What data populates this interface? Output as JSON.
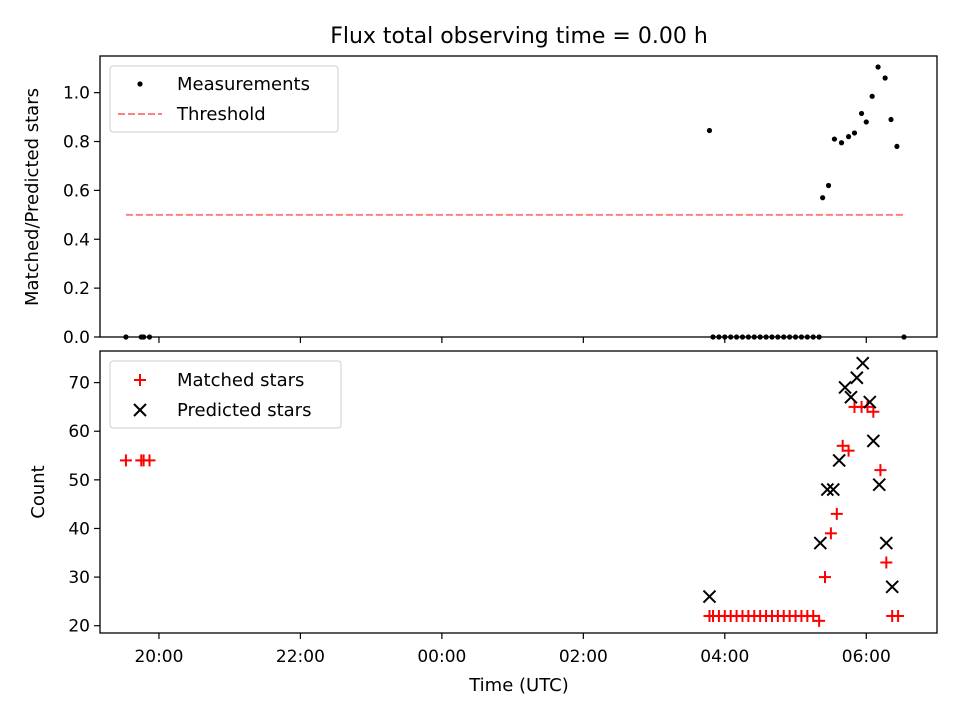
{
  "chart_data": [
    {
      "type": "scatter",
      "title": "Flux total observing time = 0.00 h",
      "xlabel": "",
      "ylabel": "Matched/Predicted stars",
      "xlim": [
        "19:10",
        "07:00"
      ],
      "ylim": [
        0,
        1.15
      ],
      "yticks": [
        0.0,
        0.2,
        0.4,
        0.6,
        0.8,
        1.0
      ],
      "ytick_labels": [
        "0.0",
        "0.2",
        "0.4",
        "0.6",
        "0.8",
        "1.0"
      ],
      "legend_position": "upper-left",
      "legend": [
        "Measurements",
        "Threshold"
      ],
      "series": [
        {
          "name": "Measurements",
          "marker": "dot",
          "color": "#000000",
          "points": [
            [
              "19:32",
              0.0
            ],
            [
              "19:45",
              0.0
            ],
            [
              "19:47",
              0.0
            ],
            [
              "19:52",
              0.0
            ],
            [
              "03:47",
              0.845
            ],
            [
              "03:50",
              0.0
            ],
            [
              "03:55",
              0.0
            ],
            [
              "04:00",
              0.0
            ],
            [
              "04:05",
              0.0
            ],
            [
              "04:10",
              0.0
            ],
            [
              "04:15",
              0.0
            ],
            [
              "04:20",
              0.0
            ],
            [
              "04:25",
              0.0
            ],
            [
              "04:30",
              0.0
            ],
            [
              "04:35",
              0.0
            ],
            [
              "04:40",
              0.0
            ],
            [
              "04:45",
              0.0
            ],
            [
              "04:50",
              0.0
            ],
            [
              "04:55",
              0.0
            ],
            [
              "05:00",
              0.0
            ],
            [
              "05:05",
              0.0
            ],
            [
              "05:10",
              0.0
            ],
            [
              "05:15",
              0.0
            ],
            [
              "05:20",
              0.0
            ],
            [
              "05:23",
              0.57
            ],
            [
              "05:28",
              0.62
            ],
            [
              "05:33",
              0.81
            ],
            [
              "05:39",
              0.795
            ],
            [
              "05:45",
              0.82
            ],
            [
              "05:50",
              0.835
            ],
            [
              "05:56",
              0.915
            ],
            [
              "06:00",
              0.88
            ],
            [
              "06:05",
              0.985
            ],
            [
              "06:10",
              1.105
            ],
            [
              "06:16",
              1.06
            ],
            [
              "06:21",
              0.89
            ],
            [
              "06:26",
              0.78
            ],
            [
              "06:32",
              0.0
            ]
          ]
        },
        {
          "name": "Threshold",
          "style": "dashed",
          "color": "#ff8080",
          "points": [
            [
              "19:32",
              0.5
            ],
            [
              "06:32",
              0.5
            ]
          ]
        }
      ]
    },
    {
      "type": "scatter",
      "title": "",
      "xlabel": "Time (UTC)",
      "ylabel": "Count",
      "xlim": [
        "19:10",
        "07:00"
      ],
      "ylim": [
        18.5,
        76.5
      ],
      "yticks": [
        20,
        30,
        40,
        50,
        60,
        70
      ],
      "ytick_labels": [
        "20",
        "30",
        "40",
        "50",
        "60",
        "70"
      ],
      "xticks": [
        "20:00",
        "22:00",
        "00:00",
        "02:00",
        "04:00",
        "06:00"
      ],
      "legend_position": "upper-left",
      "legend": [
        "Matched stars",
        "Predicted stars"
      ],
      "series": [
        {
          "name": "Matched stars",
          "marker": "plus",
          "color": "#ff0000",
          "points": [
            [
              "19:32",
              54
            ],
            [
              "19:45",
              54
            ],
            [
              "19:47",
              54
            ],
            [
              "19:52",
              54
            ],
            [
              "03:47",
              22
            ],
            [
              "03:50",
              22
            ],
            [
              "03:55",
              22
            ],
            [
              "04:00",
              22
            ],
            [
              "04:05",
              22
            ],
            [
              "04:10",
              22
            ],
            [
              "04:15",
              22
            ],
            [
              "04:20",
              22
            ],
            [
              "04:25",
              22
            ],
            [
              "04:30",
              22
            ],
            [
              "04:35",
              22
            ],
            [
              "04:40",
              22
            ],
            [
              "04:45",
              22
            ],
            [
              "04:50",
              22
            ],
            [
              "04:55",
              22
            ],
            [
              "05:00",
              22
            ],
            [
              "05:05",
              22
            ],
            [
              "05:10",
              22
            ],
            [
              "05:15",
              22
            ],
            [
              "05:20",
              21
            ],
            [
              "05:25",
              30
            ],
            [
              "05:30",
              39
            ],
            [
              "05:35",
              43
            ],
            [
              "05:40",
              57
            ],
            [
              "05:45",
              56
            ],
            [
              "05:50",
              65
            ],
            [
              "05:56",
              65
            ],
            [
              "06:01",
              65
            ],
            [
              "06:06",
              64
            ],
            [
              "06:12",
              52
            ],
            [
              "06:17",
              33
            ],
            [
              "06:22",
              22
            ],
            [
              "06:27",
              22
            ]
          ]
        },
        {
          "name": "Predicted stars",
          "marker": "x",
          "color": "#000000",
          "points": [
            [
              "03:47",
              26
            ],
            [
              "05:21",
              37
            ],
            [
              "05:27",
              48
            ],
            [
              "05:32",
              48
            ],
            [
              "05:37",
              54
            ],
            [
              "05:42",
              69
            ],
            [
              "05:47",
              67
            ],
            [
              "05:52",
              71
            ],
            [
              "05:57",
              74
            ],
            [
              "06:03",
              66
            ],
            [
              "06:06",
              58
            ],
            [
              "06:11",
              49
            ],
            [
              "06:17",
              37
            ],
            [
              "06:22",
              28
            ]
          ]
        }
      ]
    }
  ]
}
